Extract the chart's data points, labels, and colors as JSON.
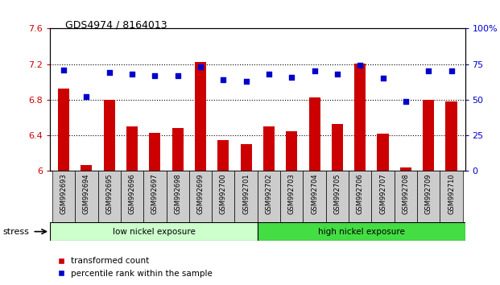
{
  "title": "GDS4974 / 8164013",
  "samples": [
    "GSM992693",
    "GSM992694",
    "GSM992695",
    "GSM992696",
    "GSM992697",
    "GSM992698",
    "GSM992699",
    "GSM992700",
    "GSM992701",
    "GSM992702",
    "GSM992703",
    "GSM992704",
    "GSM992705",
    "GSM992706",
    "GSM992707",
    "GSM992708",
    "GSM992709",
    "GSM992710"
  ],
  "transformed_count": [
    6.93,
    6.07,
    6.8,
    6.5,
    6.43,
    6.48,
    7.22,
    6.35,
    6.3,
    6.5,
    6.45,
    6.83,
    6.53,
    7.21,
    6.42,
    6.04,
    6.8,
    6.78
  ],
  "percentile_rank": [
    71,
    52,
    69,
    68,
    67,
    67,
    73,
    64,
    63,
    68,
    66,
    70,
    68,
    74,
    65,
    49,
    70,
    70
  ],
  "bar_color": "#cc0000",
  "dot_color": "#0000cc",
  "ylim_left": [
    6.0,
    7.6
  ],
  "ylim_right": [
    0,
    100
  ],
  "yticks_left": [
    6.0,
    6.4,
    6.8,
    7.2,
    7.6
  ],
  "yticks_right": [
    0,
    25,
    50,
    75,
    100
  ],
  "ytick_labels_left": [
    "6",
    "6.4",
    "6.8",
    "7.2",
    "7.6"
  ],
  "ytick_labels_right": [
    "0",
    "25",
    "50",
    "75",
    "100%"
  ],
  "grid_values": [
    6.4,
    6.8,
    7.2
  ],
  "group1_label": "low nickel exposure",
  "group2_label": "high nickel exposure",
  "group1_count": 9,
  "stress_label": "stress",
  "legend1": "transformed count",
  "legend2": "percentile rank within the sample",
  "group1_color": "#ccffcc",
  "group2_color": "#44dd44",
  "bar_width": 0.5,
  "plot_bg_color": "#ffffff",
  "xtick_bg_color": "#cccccc"
}
